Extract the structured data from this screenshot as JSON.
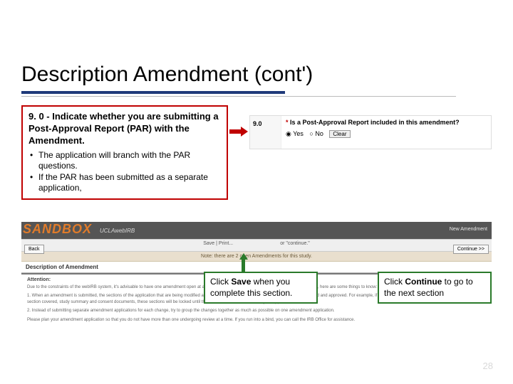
{
  "slide": {
    "title": "Description Amendment (cont')",
    "title_underline_color": "#1f3a7a",
    "title_underline_gray": "#bbbbbb"
  },
  "instruction": {
    "border_color": "#c00000",
    "main": "9. 0 - Indicate whether you are submitting a Post-Approval Report (PAR) with the Amendment.",
    "bullets": [
      "The application will branch with the PAR questions.",
      "If the PAR has been submitted as a separate application,"
    ]
  },
  "par_panel": {
    "section_number": "9.0",
    "asterisk": "*",
    "question": "Is a Post-Approval Report included in this amendment?",
    "options": {
      "yes": "Yes",
      "no": "No"
    },
    "clear_label": "Clear"
  },
  "app": {
    "sandbox_word": "SANDBOX",
    "sandbox_suffix": "UCLAwebIRB",
    "top_right": "New Amendment",
    "toolbar": {
      "back_label": "Back",
      "save_print_label": "Save | Print...",
      "continue_label": "Continue >>",
      "or_continue": "or \"continue.\""
    },
    "notes_bar": "Note: there are 2 open Amendments for this study.",
    "section_header": "Description of Amendment",
    "attention": {
      "label": "Attention:",
      "p1": "Due to the constraints of the webIRB system, it's advisable to have one amendment open at a time. If, however, you need to submit a second amendment, here are some things to know:",
      "p2": "1. When an amendment is submitted, the sections of the application that are being modified are locked to further changes until the amendment is reviewed and approved. For example, if you submit an amendment that has modifications to the section covered, study summary and consent documents, these sections will be locked until the amendment is reviewed and your approval letter.",
      "p3": "2. Instead of submitting separate amendment applications for each change, try to group the changes together as much as possible on one amendment application.",
      "p4": "Please plan your amendment application so that you do not have more than one undergoing review at a time. If you run into a bind, you can call the IRB Office for assistance."
    }
  },
  "callouts": {
    "save_pre": "Click ",
    "save_bold": "Save",
    "save_post": " when you complete this section.",
    "continue_pre": "Click ",
    "continue_bold": "Continue",
    "continue_post": " to go to the next section",
    "border_color": "#2a7a2a"
  },
  "page_number": "28"
}
